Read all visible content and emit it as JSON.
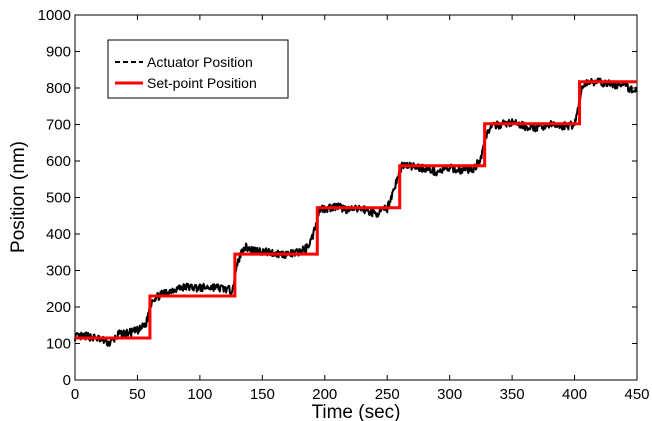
{
  "chart_data": {
    "type": "line",
    "title": "",
    "xlabel": "Time (sec)",
    "ylabel": "Position (nm)",
    "xlim": [
      0,
      450
    ],
    "ylim": [
      0,
      1000
    ],
    "xticks": [
      0,
      50,
      100,
      150,
      200,
      250,
      300,
      350,
      400,
      450
    ],
    "yticks": [
      0,
      100,
      200,
      300,
      400,
      500,
      600,
      700,
      800,
      900,
      1000
    ],
    "grid": false,
    "legend_position": "top-left",
    "series": [
      {
        "name": "Actuator Position",
        "style": "dashed",
        "color": "#000000",
        "x": [
          0,
          10,
          20,
          28,
          35,
          45,
          52,
          57,
          60,
          62,
          70,
          80,
          90,
          100,
          110,
          120,
          125,
          128,
          130,
          135,
          145,
          155,
          165,
          175,
          185,
          190,
          194,
          196,
          200,
          210,
          220,
          230,
          240,
          250,
          255,
          260,
          262,
          270,
          280,
          290,
          300,
          310,
          320,
          325,
          328,
          332,
          340,
          350,
          360,
          370,
          380,
          390,
          400,
          403,
          406,
          412,
          420,
          430,
          440,
          450
        ],
        "y": [
          118,
          120,
          112,
          100,
          125,
          130,
          138,
          155,
          200,
          222,
          235,
          250,
          255,
          252,
          255,
          250,
          245,
          275,
          320,
          365,
          355,
          350,
          345,
          345,
          360,
          390,
          445,
          470,
          470,
          475,
          465,
          470,
          455,
          470,
          520,
          570,
          590,
          585,
          580,
          570,
          580,
          575,
          580,
          610,
          660,
          690,
          700,
          705,
          695,
          690,
          700,
          695,
          700,
          750,
          800,
          820,
          815,
          810,
          805,
          790
        ]
      },
      {
        "name": "Set-point Position",
        "style": "solid",
        "color": "#ff0000",
        "x": [
          0,
          60,
          60,
          128,
          128,
          194,
          194,
          260,
          260,
          328,
          328,
          404,
          404,
          450
        ],
        "y": [
          115,
          115,
          230,
          230,
          345,
          345,
          472,
          472,
          587,
          587,
          702,
          702,
          817,
          817
        ]
      }
    ]
  }
}
